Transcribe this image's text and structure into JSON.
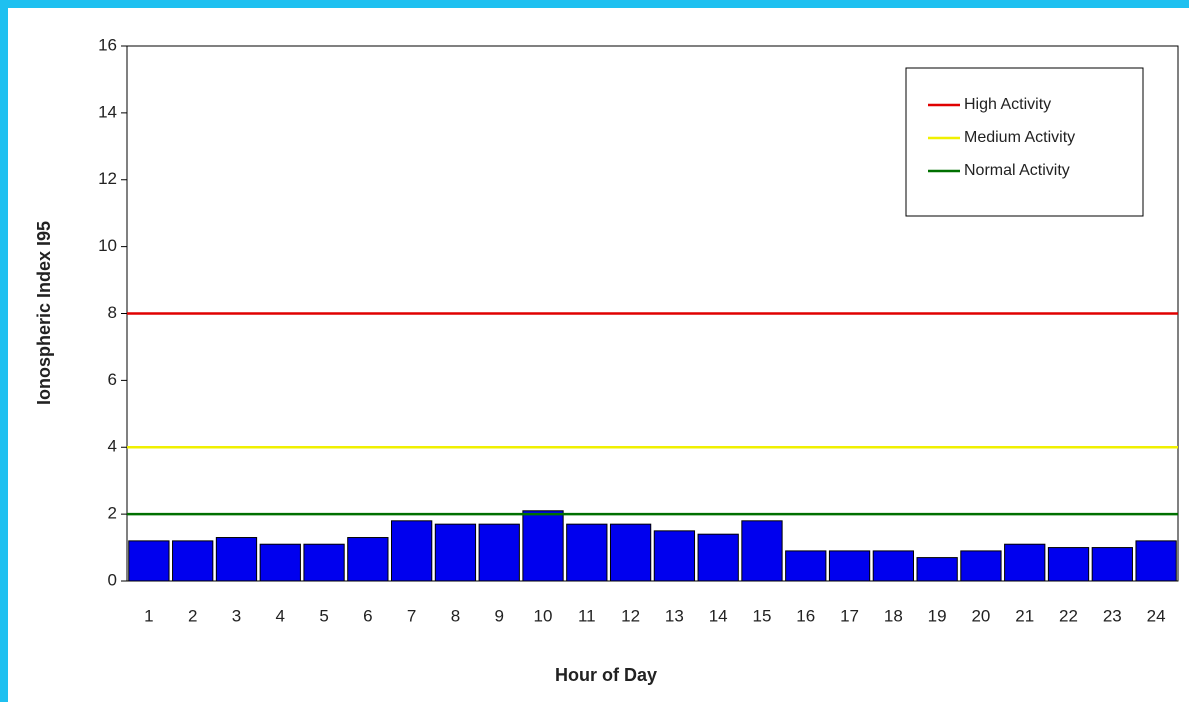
{
  "chart_data": {
    "type": "bar",
    "xlabel": "Hour of Day",
    "ylabel": "Ionospheric Index I95",
    "categories": [
      "1",
      "2",
      "3",
      "4",
      "5",
      "6",
      "7",
      "8",
      "9",
      "10",
      "11",
      "12",
      "13",
      "14",
      "15",
      "16",
      "17",
      "18",
      "19",
      "20",
      "21",
      "22",
      "23",
      "24"
    ],
    "values": [
      1.2,
      1.2,
      1.3,
      1.1,
      1.1,
      1.3,
      1.8,
      1.7,
      1.7,
      2.1,
      1.7,
      1.7,
      1.5,
      1.4,
      1.8,
      0.9,
      0.9,
      0.9,
      0.7,
      0.9,
      1.1,
      1.0,
      1.0,
      1.2
    ],
    "color": "#0000ee",
    "ylim": [
      0,
      16
    ],
    "yticks": [
      0,
      2,
      4,
      6,
      8,
      10,
      12,
      14,
      16
    ],
    "reference_lines": [
      {
        "name": "High Activity",
        "color": "#e00000",
        "value": 8
      },
      {
        "name": "Medium Activity",
        "color": "#f0f000",
        "value": 4
      },
      {
        "name": "Normal Activity",
        "color": "#007000",
        "value": 2
      }
    ],
    "legend": "upper right"
  }
}
